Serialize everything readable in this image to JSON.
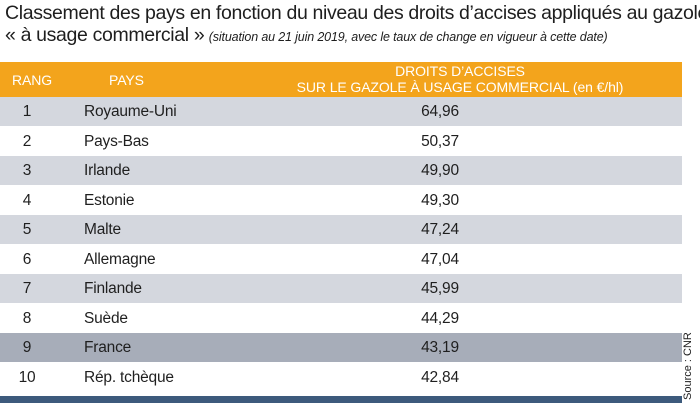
{
  "title": {
    "line1": "Classement des pays en fonction du niveau des droits d’accises appliqués au gazole",
    "line2_main": "« à usage commercial »",
    "line2_subtitle": "(situation au 21 juin 2019, avec le taux de change en vigueur à cette date)"
  },
  "table": {
    "headers": {
      "rang": "RANG",
      "pays": "PAYS",
      "droits_line1": "DROITS D’ACCISES",
      "droits_line2": "SUR LE GAZOLE À USAGE COMMERCIAL (en €/hl)"
    },
    "rows": [
      {
        "rang": "1",
        "pays": "Royaume-Uni",
        "valeur": "64,96"
      },
      {
        "rang": "2",
        "pays": "Pays-Bas",
        "valeur": "50,37"
      },
      {
        "rang": "3",
        "pays": "Irlande",
        "valeur": "49,90"
      },
      {
        "rang": "4",
        "pays": "Estonie",
        "valeur": "49,30"
      },
      {
        "rang": "5",
        "pays": "Malte",
        "valeur": "47,24"
      },
      {
        "rang": "6",
        "pays": "Allemagne",
        "valeur": "47,04"
      },
      {
        "rang": "7",
        "pays": "Finlande",
        "valeur": "45,99"
      },
      {
        "rang": "8",
        "pays": "Suède",
        "valeur": "44,29"
      },
      {
        "rang": "9",
        "pays": "France",
        "valeur": "43,19"
      },
      {
        "rang": "10",
        "pays": "Rép. tchèque",
        "valeur": "42,84"
      }
    ]
  },
  "source": "Source : CNR",
  "colors": {
    "header_bg": "#f3a41c",
    "row_shaded": "#d4d7de",
    "row_highlight": "#a7adb9",
    "bottom_bar": "#3d5a7c"
  }
}
